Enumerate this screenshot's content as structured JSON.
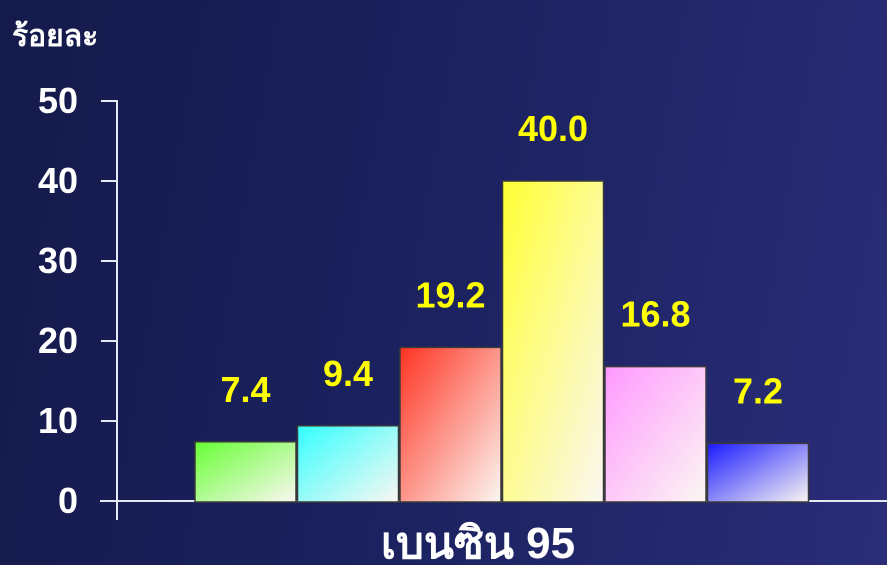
{
  "chart_data": {
    "type": "bar",
    "ylabel": "ร้อยละ",
    "xlabel": "เบนซิน 95",
    "ylim": [
      0,
      50
    ],
    "yticks": [
      0,
      10,
      20,
      30,
      40,
      50
    ],
    "values": [
      7.4,
      9.4,
      19.2,
      40.0,
      16.8,
      7.2
    ],
    "value_labels": [
      "7.4",
      "9.4",
      "19.2",
      "40.0",
      "16.8",
      "7.2"
    ],
    "bar_colors": [
      "#66ff33",
      "#33ffff",
      "#ff3322",
      "#ffff33",
      "#ff99ff",
      "#1a1aff"
    ],
    "label_color": "#ffff00",
    "grid": false,
    "legend": "none"
  }
}
